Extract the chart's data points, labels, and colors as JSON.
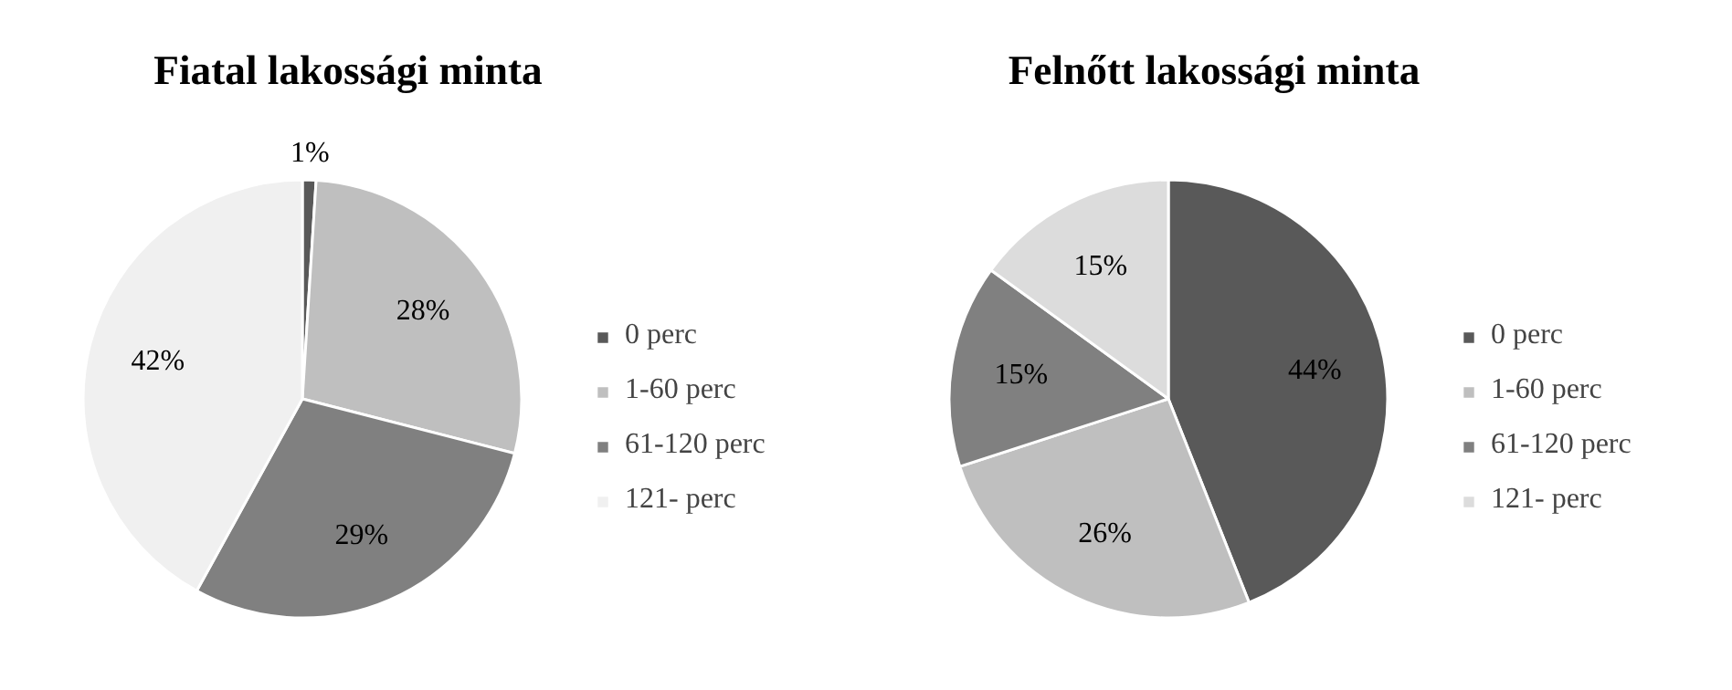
{
  "chart_data": [
    {
      "type": "pie",
      "title": "Fiatal lakossági minta",
      "categories": [
        "0 perc",
        "1-60 perc",
        "61-120 perc",
        "121- perc"
      ],
      "values": [
        1,
        28,
        29,
        42
      ],
      "colors": [
        "#595959",
        "#bfbfbf",
        "#808080",
        "#f0f0f0"
      ],
      "value_labels": [
        "1%",
        "28%",
        "29%",
        "42%"
      ],
      "legend": "right"
    },
    {
      "type": "pie",
      "title": "Felnőtt lakossági minta",
      "categories": [
        "0 perc",
        "1-60 perc",
        "61-120 perc",
        "121- perc"
      ],
      "values": [
        44,
        26,
        15,
        15
      ],
      "colors": [
        "#595959",
        "#bfbfbf",
        "#808080",
        "#dcdcdc"
      ],
      "value_labels": [
        "44%",
        "26%",
        "15%",
        "15%"
      ],
      "legend": "right"
    }
  ]
}
